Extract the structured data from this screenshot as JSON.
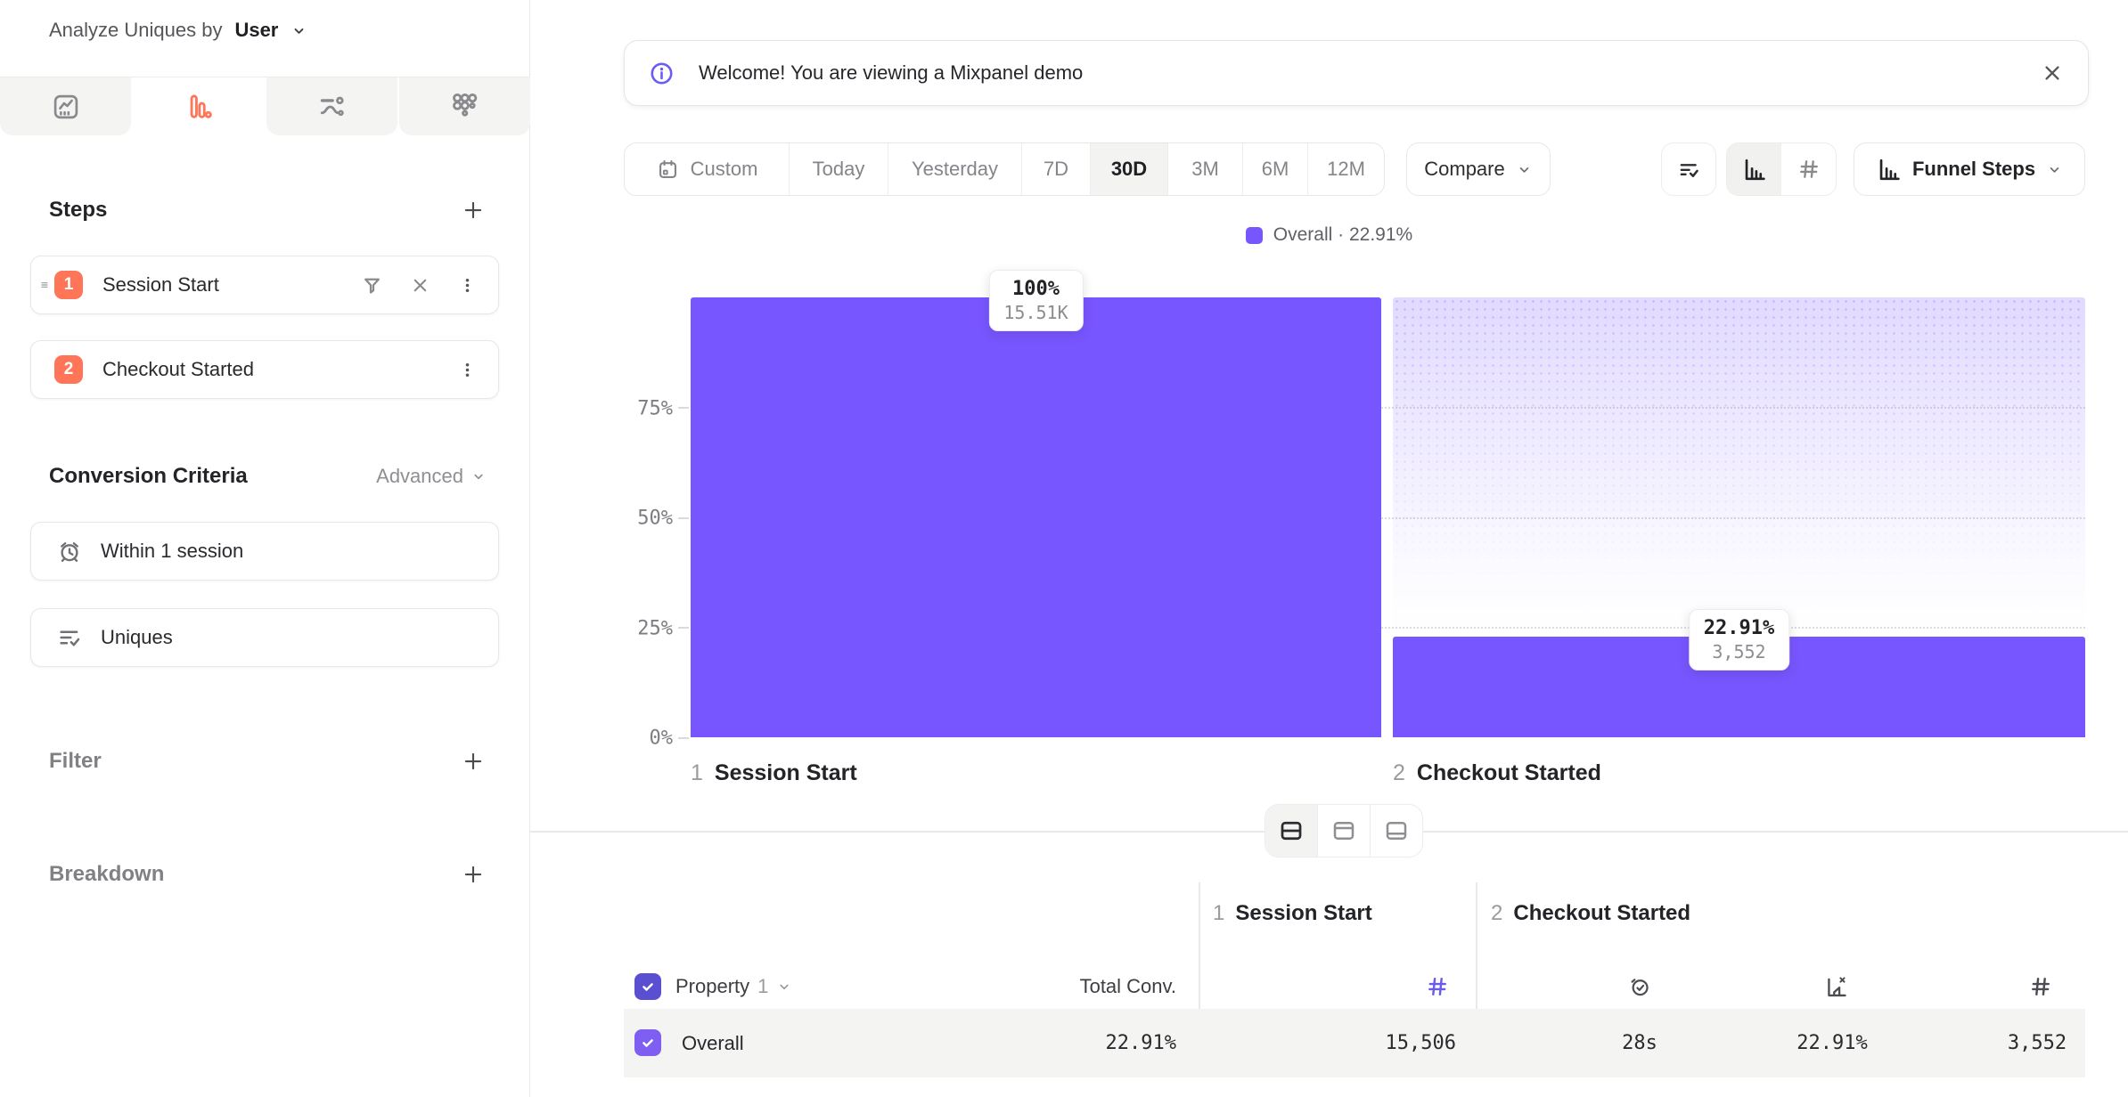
{
  "app": {
    "name": "Mixpanel Funnels report"
  },
  "colors": {
    "accent_purple": "#7856ff",
    "step_badge_orange": "#ff7557",
    "header_checkbox_purple": "#5a4fd0",
    "row_checkbox_purple": "#7e5ff2",
    "hash_icon_purple": "#6a5ce8",
    "row_background": "#f4f4f3"
  },
  "sidebar": {
    "analyze": {
      "label": "Analyze Uniques by",
      "value": "User"
    },
    "tabs": [
      {
        "icon": "insights-icon",
        "active": false
      },
      {
        "icon": "funnels-icon",
        "active": true
      },
      {
        "icon": "flows-icon",
        "active": false
      },
      {
        "icon": "retention-icon",
        "active": false
      }
    ],
    "steps": {
      "title": "Steps",
      "items": [
        {
          "num": "1",
          "label": "Session Start"
        },
        {
          "num": "2",
          "label": "Checkout Started"
        }
      ]
    },
    "conversion_criteria": {
      "title": "Conversion Criteria",
      "advanced_label": "Advanced",
      "items": [
        {
          "icon": "alarm-clock-icon",
          "label": "Within 1 session"
        },
        {
          "icon": "checklist-icon",
          "label": "Uniques"
        }
      ]
    },
    "filter_title": "Filter",
    "breakdown_title": "Breakdown"
  },
  "banner": {
    "text": "Welcome! You are viewing a Mixpanel demo"
  },
  "toolbar": {
    "date_ranges": [
      {
        "label": "Custom",
        "icon": "calendar-icon",
        "active": false
      },
      {
        "label": "Today",
        "active": false
      },
      {
        "label": "Yesterday",
        "active": false
      },
      {
        "label": "7D",
        "active": false
      },
      {
        "label": "30D",
        "active": true
      },
      {
        "label": "3M",
        "active": false
      },
      {
        "label": "6M",
        "active": false
      },
      {
        "label": "12M",
        "active": false
      }
    ],
    "compare_label": "Compare",
    "chart_type_label": "Funnel Steps"
  },
  "legend": {
    "label": "Overall · 22.91%"
  },
  "chart_data": {
    "type": "funnel_bar",
    "legend": [
      "Overall · 22.91%"
    ],
    "y_ticks": [
      "0%",
      "25%",
      "50%",
      "75%"
    ],
    "ylim": [
      0,
      100
    ],
    "grid": "dotted horizontal at 25/50/75%",
    "bar_color": "#7856ff",
    "steps": [
      {
        "step": "1",
        "name": "Session Start",
        "conversion_pct": 100,
        "count": 15506,
        "pct_label": "100%",
        "count_label": "15.51K"
      },
      {
        "step": "2",
        "name": "Checkout Started",
        "conversion_pct": 22.91,
        "count": 3552,
        "pct_label": "22.91%",
        "count_label": "3,552"
      }
    ]
  },
  "table": {
    "property_label": "Property",
    "property_num": "1",
    "total_conv_label": "Total Conv.",
    "groups": [
      {
        "num": "1",
        "name": "Session Start"
      },
      {
        "num": "2",
        "name": "Checkout Started"
      }
    ],
    "rows": [
      {
        "label": "Overall",
        "total_conv": "22.91%",
        "step1_count": "15,506",
        "step2_avg_time": "28s",
        "step2_conv": "22.91%",
        "step2_count": "3,552",
        "checked": true
      }
    ]
  }
}
